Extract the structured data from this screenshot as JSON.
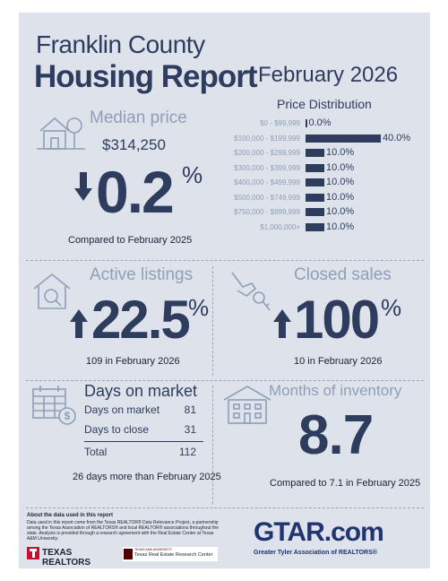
{
  "header": {
    "county": "Franklin County",
    "title": "Housing Report",
    "period": "February 2026"
  },
  "median_price": {
    "heading": "Median price",
    "value": "$314,250",
    "change": "0.2",
    "unit": "%",
    "direction": "down",
    "comparison": "Compared to February 2025"
  },
  "chart_data": {
    "type": "bar",
    "title": "Price Distribution",
    "orientation": "horizontal",
    "categories": [
      "$0 - $99,999",
      "$100,000 - $199,999",
      "$200,000 - $299,999",
      "$300,000 - $399,999",
      "$400,000 - $499,999",
      "$500,000 - $749,999",
      "$750,000 - $999,999",
      "$1,000,000+"
    ],
    "values": [
      0.0,
      40.0,
      10.0,
      10.0,
      10.0,
      10.0,
      10.0,
      10.0
    ],
    "value_labels": [
      "0.0%",
      "40.0%",
      "10.0%",
      "10.0%",
      "10.0%",
      "10.0%",
      "10.0%",
      "10.0%"
    ],
    "xlim": [
      0,
      40
    ],
    "grid": false,
    "colors": {
      "bar": "#2e3c5e"
    }
  },
  "active_listings": {
    "heading": "Active listings",
    "change": "22.5",
    "unit": "%",
    "direction": "up",
    "comparison": "109 in February 2026"
  },
  "closed_sales": {
    "heading": "Closed sales",
    "change": "100",
    "unit": "%",
    "direction": "up",
    "comparison": "10 in February 2026"
  },
  "days_on_market": {
    "heading": "Days on market",
    "rows": [
      {
        "label": "Days on market",
        "value": "81"
      },
      {
        "label": "Days to close",
        "value": "31"
      }
    ],
    "total_label": "Total",
    "total_value": "112",
    "comparison": "26 days more than February 2025"
  },
  "months_inventory": {
    "heading": "Months of inventory",
    "value": "8.7",
    "comparison": "Compared to 7.1 in February 2025"
  },
  "footer": {
    "about_title": "About the data used in this report",
    "about_text": "Data used in this report come from the Texas REALTOR® Data Relevance Project, a partnership among the Texas Association of REALTORS® and local REALTOR® associations throughout the state. Analysis is provided through a research agreement with the Real Estate Center at Texas A&M University.",
    "texas_realtors": "TEXAS REALTORS",
    "tamu_small": "TEXAS A&M UNIVERSITY",
    "tamu_center": "Texas Real Estate Research Center",
    "gtar_logo": "GTAR.com",
    "gtar_tagline": "Greater Tyler Association of REALTORS®"
  },
  "colors": {
    "navy": "#2e3c5e",
    "light": "#8f9fb8",
    "background": "#dde2eb",
    "gtar_red": "#c8102e"
  }
}
